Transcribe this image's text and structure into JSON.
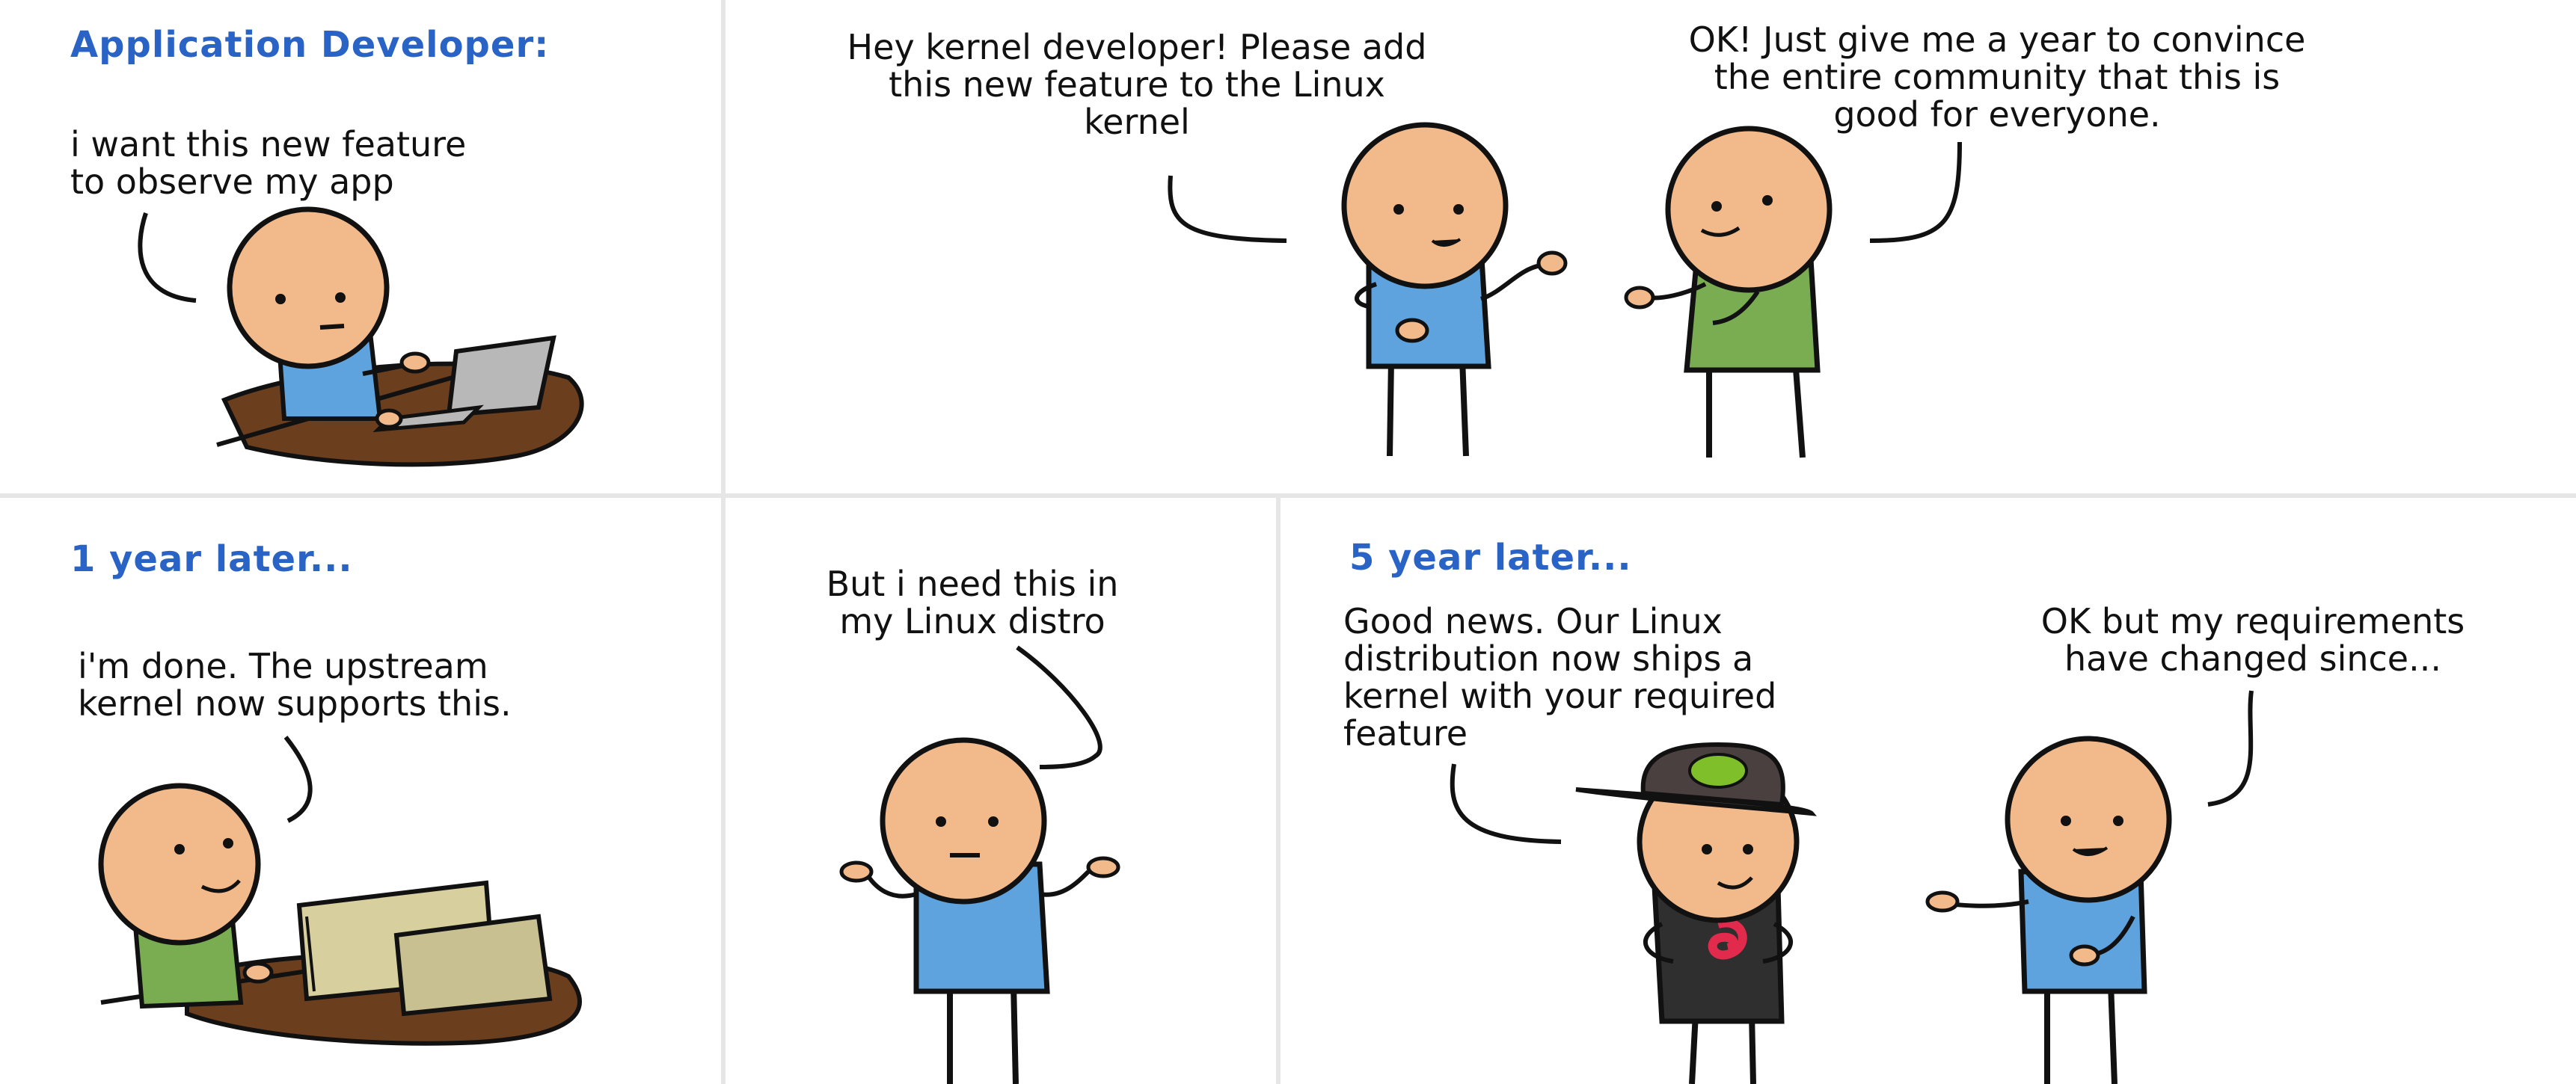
{
  "colors": {
    "caption": "#2a63c6",
    "skin": "#f2b98a",
    "blue_shirt": "#5ea3dd",
    "green_shirt": "#7aac52",
    "dark_shirt": "#2f2f2f",
    "desk": "#6b3f1e",
    "laptop": "#b8b8b8",
    "computer": "#d8cf9f",
    "hat": "#4a4040",
    "logo_red": "#e22a4d",
    "chameleon": "#7fbf2a"
  },
  "panels": {
    "p1": {
      "caption": "Application Developer:",
      "speech": "i want this new feature\nto observe my app"
    },
    "p2": {
      "speech_left": "Hey kernel developer! Please add\nthis new feature to the Linux\nkernel",
      "speech_right": "OK! Just give me a year to convince\nthe entire community that this is\ngood for everyone."
    },
    "p3": {
      "caption": "1 year later...",
      "speech": "i'm done. The upstream\nkernel now supports this."
    },
    "p4": {
      "speech": "But i need this in\nmy Linux distro"
    },
    "p5": {
      "caption": "5 year later...",
      "speech_left": "Good news. Our Linux\ndistribution now ships a\nkernel with your required\nfeature",
      "speech_right": "OK but my requirements\nhave changed since..."
    }
  }
}
